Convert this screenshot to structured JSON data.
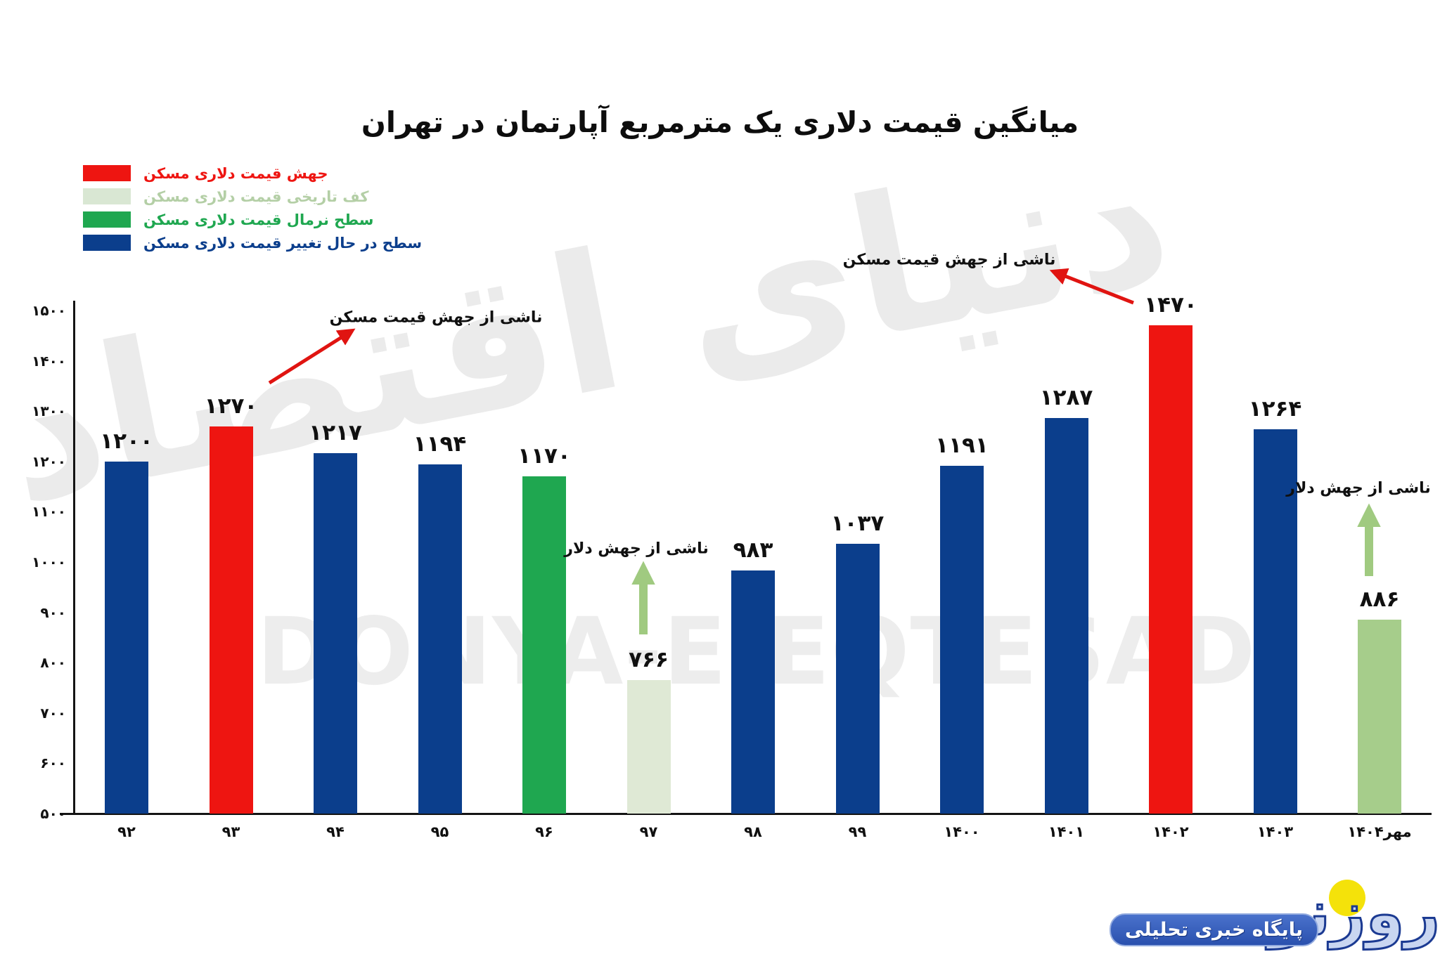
{
  "title": "میانگین قیمت دلاری یک مترمربع آپارتمان در تهران",
  "legend": {
    "items": [
      {
        "label": "جهش قیمت دلاری مسکن",
        "color": "#ee1511",
        "text_color": "#ee1511"
      },
      {
        "label": "کف تاریخی قیمت دلاری مسکن",
        "color": "#d9e7d3",
        "text_color": "#b4cfa6"
      },
      {
        "label": "سطح نرمال قیمت دلاری مسکن",
        "color": "#1fa750",
        "text_color": "#1fa750"
      },
      {
        "label": "سطح در حال تغییر قیمت دلاری مسکن",
        "color": "#0b3e8c",
        "text_color": "#0b3e8c"
      }
    ]
  },
  "chart_data": {
    "type": "bar",
    "title": "میانگین قیمت دلاری یک مترمربع آپارتمان در تهران",
    "xlabel": "",
    "ylabel": "",
    "ylim": [
      500,
      1500
    ],
    "grid": false,
    "legend_position": "top-left",
    "categories": [
      "۹۲",
      "۹۳",
      "۹۴",
      "۹۵",
      "۹۶",
      "۹۷",
      "۹۸",
      "۹۹",
      "۱۴۰۰",
      "۱۴۰۱",
      "۱۴۰۲",
      "۱۴۰۳",
      "مهر۱۴۰۴"
    ],
    "categories_western": [
      "92",
      "93",
      "94",
      "95",
      "96",
      "97",
      "98",
      "99",
      "1400",
      "1401",
      "1402",
      "1403",
      "Mehr 1404"
    ],
    "values": [
      1200,
      1270,
      1217,
      1194,
      1170,
      766,
      983,
      1037,
      1191,
      1287,
      1470,
      1264,
      886
    ],
    "value_labels": [
      "۱۲۰۰",
      "۱۲۷۰",
      "۱۲۱۷",
      "۱۱۹۴",
      "۱۱۷۰",
      "۷۶۶",
      "۹۸۳",
      "۱۰۳۷",
      "۱۱۹۱",
      "۱۲۸۷",
      "۱۴۷۰",
      "۱۲۶۴",
      "۸۸۶"
    ],
    "bar_colors": [
      "#0b3e8c",
      "#ee1511",
      "#0b3e8c",
      "#0b3e8c",
      "#1fa750",
      "#dfe9d5",
      "#0b3e8c",
      "#0b3e8c",
      "#0b3e8c",
      "#0b3e8c",
      "#ee1511",
      "#0b3e8c",
      "#a6cd8b"
    ],
    "y_ticks": [
      {
        "value": 1500,
        "label": "۱۵۰۰"
      },
      {
        "value": 1400,
        "label": "۱۴۰۰"
      },
      {
        "value": 1300,
        "label": "۱۳۰۰"
      },
      {
        "value": 1200,
        "label": "۱۲۰۰"
      },
      {
        "value": 1100,
        "label": "۱۱۰۰"
      },
      {
        "value": 1000,
        "label": "۱۰۰۰"
      },
      {
        "value": 900,
        "label": "۹۰۰"
      },
      {
        "value": 800,
        "label": "۸۰۰"
      },
      {
        "value": 700,
        "label": "۷۰۰"
      },
      {
        "value": 600,
        "label": "۶۰۰"
      },
      {
        "value": 500,
        "label": "۵۰۰"
      }
    ],
    "annotations": [
      {
        "text": "ناشی از جهش قیمت مسکن",
        "arrow_color": "#e01411",
        "target_bar_index": 1
      },
      {
        "text": "ناشی از جهش قیمت مسکن",
        "arrow_color": "#e01411",
        "target_bar_index": 10
      },
      {
        "text": "ناشی از جهش دلار",
        "arrow_color": "#a0ca80",
        "target_bar_index": 5
      },
      {
        "text": "ناشی از جهش دلار",
        "arrow_color": "#a0ca80",
        "target_bar_index": 12
      }
    ]
  },
  "watermark": {
    "persian": "دنیای اقتصاد",
    "latin": "DONYA-E-EQTESAD"
  },
  "logo": {
    "wordmark": "روزنو",
    "tagline": "پایگاه خبری تحلیلی"
  }
}
